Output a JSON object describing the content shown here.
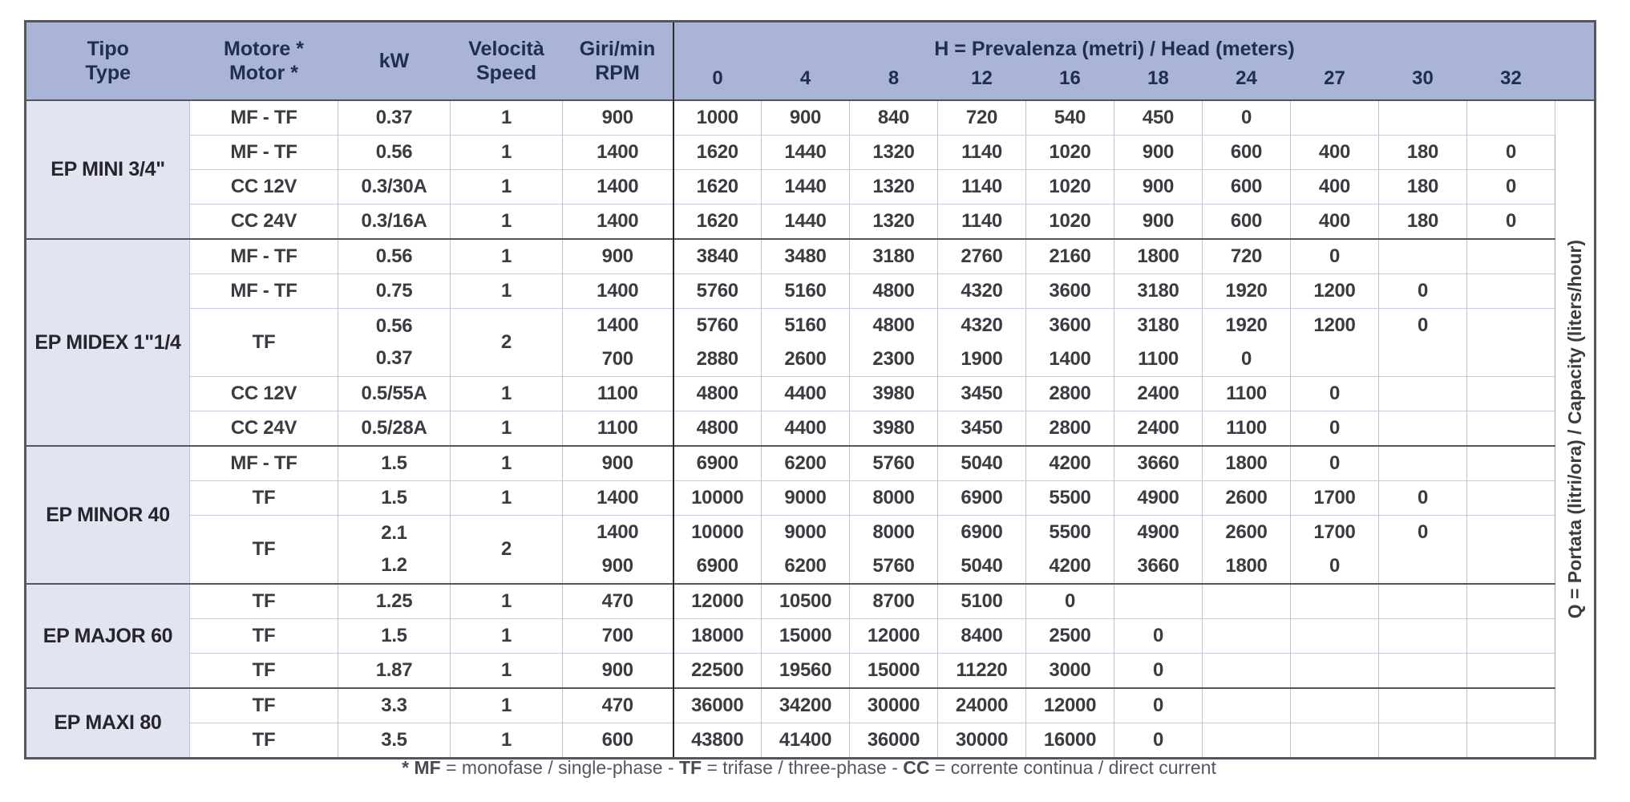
{
  "colors": {
    "header_bg": "#a9b4d6",
    "header_text": "#202e4f",
    "type_column_bg": "#e2e5f1",
    "body_text": "#3b3c41",
    "section_border": "#53565c",
    "thin_line": "#c6ccdd"
  },
  "table": {
    "header": {
      "tipo_line1": "Tipo",
      "tipo_line2": "Type",
      "motore_line1": "Motore *",
      "motore_line2": "Motor *",
      "kw": "kW",
      "velocita_line1": "Velocità",
      "velocita_line2": "Speed",
      "rpm_line1": "Giri/min",
      "rpm_line2": "RPM",
      "h_prefix": "H",
      "h_rest": " = Prevalenza (metri) / Head (meters)",
      "head_values": [
        "0",
        "4",
        "8",
        "12",
        "16",
        "18",
        "24",
        "27",
        "30",
        "32"
      ],
      "q_prefix": "Q",
      "q_rest": " = Portata (litri/ora) / Capacity (liters/hour)"
    },
    "sections": [
      {
        "type": "EP MINI 3/4\"",
        "rows": [
          {
            "motore": "MF - TF",
            "kw": "0.37",
            "speed": "1",
            "rpm": "900",
            "values": [
              "1000",
              "900",
              "840",
              "720",
              "540",
              "450",
              "0",
              "",
              "",
              ""
            ]
          },
          {
            "motore": "MF - TF",
            "kw": "0.56",
            "speed": "1",
            "rpm": "1400",
            "values": [
              "1620",
              "1440",
              "1320",
              "1140",
              "1020",
              "900",
              "600",
              "400",
              "180",
              "0"
            ]
          },
          {
            "motore": "CC 12V",
            "kw": "0.3/30A",
            "speed": "1",
            "rpm": "1400",
            "values": [
              "1620",
              "1440",
              "1320",
              "1140",
              "1020",
              "900",
              "600",
              "400",
              "180",
              "0"
            ]
          },
          {
            "motore": "CC 24V",
            "kw": "0.3/16A",
            "speed": "1",
            "rpm": "1400",
            "values": [
              "1620",
              "1440",
              "1320",
              "1140",
              "1020",
              "900",
              "600",
              "400",
              "180",
              "0"
            ]
          }
        ]
      },
      {
        "type": "EP MIDEX 1\"1/4",
        "rows": [
          {
            "motore": "MF - TF",
            "kw": "0.56",
            "speed": "1",
            "rpm": "900",
            "values": [
              "3840",
              "3480",
              "3180",
              "2760",
              "2160",
              "1800",
              "720",
              "0",
              "",
              ""
            ]
          },
          {
            "motore": "MF - TF",
            "kw": "0.75",
            "speed": "1",
            "rpm": "1400",
            "values": [
              "5760",
              "5160",
              "4800",
              "4320",
              "3600",
              "3180",
              "1920",
              "1200",
              "0",
              ""
            ]
          },
          {
            "motore": "TF",
            "kw": [
              "0.56",
              "0.37"
            ],
            "speed": "2",
            "subrows": [
              {
                "rpm": "1400",
                "values": [
                  "5760",
                  "5160",
                  "4800",
                  "4320",
                  "3600",
                  "3180",
                  "1920",
                  "1200",
                  "0",
                  ""
                ]
              },
              {
                "rpm": "700",
                "values": [
                  "2880",
                  "2600",
                  "2300",
                  "1900",
                  "1400",
                  "1100",
                  "0",
                  "",
                  "",
                  ""
                ]
              }
            ]
          },
          {
            "motore": "CC 12V",
            "kw": "0.5/55A",
            "speed": "1",
            "rpm": "1100",
            "values": [
              "4800",
              "4400",
              "3980",
              "3450",
              "2800",
              "2400",
              "1100",
              "0",
              "",
              ""
            ]
          },
          {
            "motore": "CC 24V",
            "kw": "0.5/28A",
            "speed": "1",
            "rpm": "1100",
            "values": [
              "4800",
              "4400",
              "3980",
              "3450",
              "2800",
              "2400",
              "1100",
              "0",
              "",
              ""
            ]
          }
        ]
      },
      {
        "type": "EP MINOR 40",
        "rows": [
          {
            "motore": "MF - TF",
            "kw": "1.5",
            "speed": "1",
            "rpm": "900",
            "values": [
              "6900",
              "6200",
              "5760",
              "5040",
              "4200",
              "3660",
              "1800",
              "0",
              "",
              ""
            ]
          },
          {
            "motore": "TF",
            "kw": "1.5",
            "speed": "1",
            "rpm": "1400",
            "values": [
              "10000",
              "9000",
              "8000",
              "6900",
              "5500",
              "4900",
              "2600",
              "1700",
              "0",
              ""
            ]
          },
          {
            "motore": "TF",
            "kw": [
              "2.1",
              "1.2"
            ],
            "speed": "2",
            "subrows": [
              {
                "rpm": "1400",
                "values": [
                  "10000",
                  "9000",
                  "8000",
                  "6900",
                  "5500",
                  "4900",
                  "2600",
                  "1700",
                  "0",
                  ""
                ]
              },
              {
                "rpm": "900",
                "values": [
                  "6900",
                  "6200",
                  "5760",
                  "5040",
                  "4200",
                  "3660",
                  "1800",
                  "0",
                  "",
                  ""
                ]
              }
            ]
          }
        ]
      },
      {
        "type": "EP MAJOR 60",
        "rows": [
          {
            "motore": "TF",
            "kw": "1.25",
            "speed": "1",
            "rpm": "470",
            "values": [
              "12000",
              "10500",
              "8700",
              "5100",
              "0",
              "",
              "",
              "",
              "",
              ""
            ]
          },
          {
            "motore": "TF",
            "kw": "1.5",
            "speed": "1",
            "rpm": "700",
            "values": [
              "18000",
              "15000",
              "12000",
              "8400",
              "2500",
              "0",
              "",
              "",
              "",
              ""
            ]
          },
          {
            "motore": "TF",
            "kw": "1.87",
            "speed": "1",
            "rpm": "900",
            "values": [
              "22500",
              "19560",
              "15000",
              "11220",
              "3000",
              "0",
              "",
              "",
              "",
              ""
            ]
          }
        ]
      },
      {
        "type": "EP MAXI 80",
        "rows": [
          {
            "motore": "TF",
            "kw": "3.3",
            "speed": "1",
            "rpm": "470",
            "values": [
              "36000",
              "34200",
              "30000",
              "24000",
              "12000",
              "0",
              "",
              "",
              "",
              ""
            ]
          },
          {
            "motore": "TF",
            "kw": "3.5",
            "speed": "1",
            "rpm": "600",
            "values": [
              "43800",
              "41400",
              "36000",
              "30000",
              "16000",
              "0",
              "",
              "",
              "",
              ""
            ]
          }
        ]
      }
    ],
    "footnote": {
      "segments": [
        {
          "text": "* MF",
          "bold": true
        },
        {
          "text": " = monofase / single-phase - ",
          "bold": false
        },
        {
          "text": "TF",
          "bold": true
        },
        {
          "text": " = trifase / three-phase - ",
          "bold": false
        },
        {
          "text": "CC",
          "bold": true
        },
        {
          "text": " = corrente continua / direct current",
          "bold": false
        }
      ]
    }
  }
}
